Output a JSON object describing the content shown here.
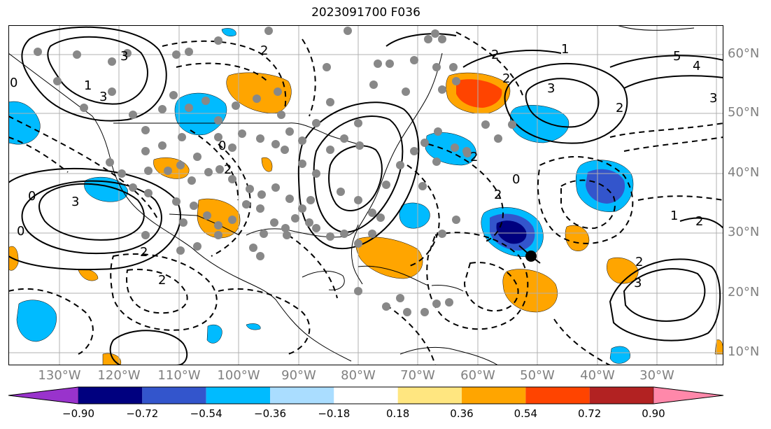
{
  "title": "2023091700 F036",
  "latitude_labels": [
    "60°N",
    "50°N",
    "40°N",
    "30°N",
    "20°N",
    "10°N"
  ],
  "longitude_labels": [
    "130°W",
    "120°W",
    "110°W",
    "100°W",
    "90°W",
    "80°W",
    "70°W",
    "60°W",
    "50°W",
    "40°W",
    "30°W"
  ],
  "colorbar": {
    "ticks": [
      "−0.90",
      "−0.72",
      "−0.54",
      "−0.36",
      "−0.18",
      "0.18",
      "0.36",
      "0.54",
      "0.72",
      "0.90"
    ],
    "colors": [
      "#9933cc",
      "#00007f",
      "#3355cc",
      "#00bbff",
      "#aaddff",
      "#ffffff",
      "#ffe680",
      "#ffa500",
      "#ff4400",
      "#b22222",
      "#ff88aa"
    ]
  },
  "contour_labels": [
    "3",
    "3",
    "2",
    "0",
    "1",
    "3",
    "2",
    "2",
    "0",
    "2",
    "2",
    "3",
    "1",
    "5",
    "4",
    "3",
    "2",
    "0",
    "2",
    "2",
    "0",
    "2",
    "1",
    "2",
    "3",
    "2",
    "0"
  ],
  "colors": {
    "negative_fill": "#00bbff",
    "strong_negative": "#3355cc",
    "darkest_negative": "#00007f",
    "positive_fill": "#ffa500",
    "strong_positive": "#ff4400",
    "gridline": "#b0b0b0",
    "marker": "#888888",
    "storm_marker": "#000000"
  }
}
